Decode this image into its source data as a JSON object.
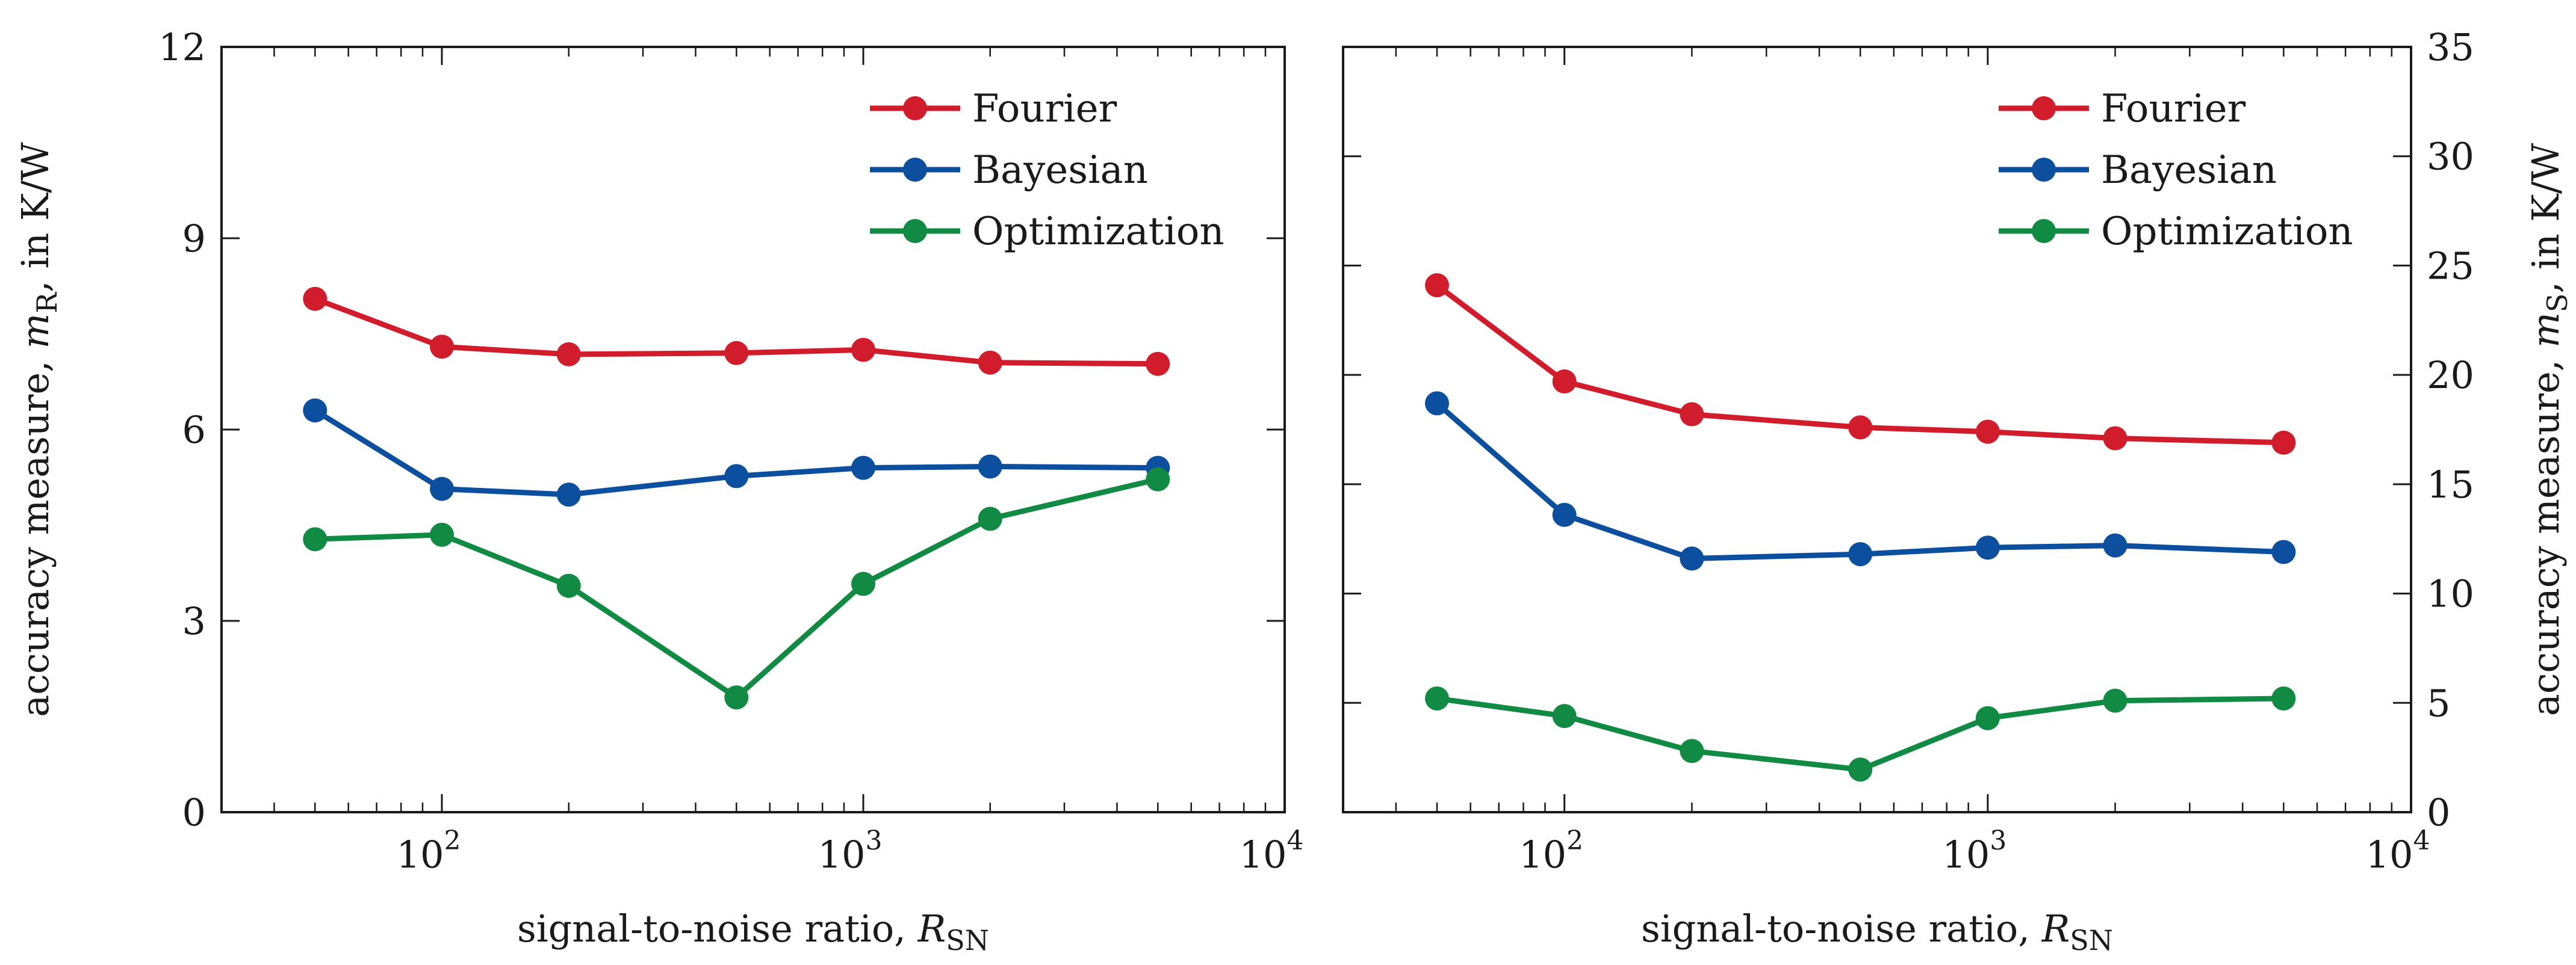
{
  "colors": {
    "fourier": "#d01c2b",
    "bayesian": "#0b4f9e",
    "optimization": "#118a43"
  },
  "chart_data": [
    {
      "type": "line",
      "xscale": "log",
      "x": [
        50,
        100,
        200,
        500,
        1000,
        2000,
        5000
      ],
      "xlim": [
        30,
        10000
      ],
      "xticks": [
        100,
        1000,
        10000
      ],
      "xtick_labels": [
        {
          "base": "10",
          "exp": "2"
        },
        {
          "base": "10",
          "exp": "3"
        },
        {
          "base": "10",
          "exp": "4"
        }
      ],
      "ylim": [
        0,
        12
      ],
      "yticks": [
        0,
        3,
        6,
        9,
        12
      ],
      "ytick_labels": [
        "0",
        "3",
        "6",
        "9",
        "12"
      ],
      "ytick_side": "left",
      "xlabel": {
        "text": "signal-to-noise ratio, ",
        "var": "R",
        "sub": "SN"
      },
      "ylabel": {
        "text": "accuracy measure, ",
        "var": "m",
        "sub": "R",
        "suffix": ", in K/W"
      },
      "legend": {
        "placement": "top-right"
      },
      "series": [
        {
          "name": "Fourier",
          "color_key": "fourier",
          "values": [
            8.05,
            7.3,
            7.18,
            7.2,
            7.25,
            7.05,
            7.03
          ]
        },
        {
          "name": "Bayesian",
          "color_key": "bayesian",
          "values": [
            6.3,
            5.07,
            4.98,
            5.27,
            5.4,
            5.42,
            5.4
          ]
        },
        {
          "name": "Optimization",
          "color_key": "optimization",
          "values": [
            4.28,
            4.35,
            3.55,
            1.8,
            3.58,
            4.6,
            5.22
          ]
        }
      ]
    },
    {
      "type": "line",
      "xscale": "log",
      "x": [
        50,
        100,
        200,
        500,
        1000,
        2000,
        5000
      ],
      "xlim": [
        30,
        10000
      ],
      "xticks": [
        100,
        1000,
        10000
      ],
      "xtick_labels": [
        {
          "base": "10",
          "exp": "2"
        },
        {
          "base": "10",
          "exp": "3"
        },
        {
          "base": "10",
          "exp": "4"
        }
      ],
      "ylim": [
        0,
        35
      ],
      "yticks": [
        0,
        5,
        10,
        15,
        20,
        25,
        30,
        35
      ],
      "ytick_labels": [
        "0",
        "5",
        "10",
        "15",
        "20",
        "25",
        "30",
        "35"
      ],
      "ytick_side": "right",
      "xlabel": {
        "text": "signal-to-noise ratio, ",
        "var": "R",
        "sub": "SN"
      },
      "ylabel": {
        "text": "accuracy measure, ",
        "var": "m",
        "sub": "S",
        "suffix": ", in K/W"
      },
      "legend": {
        "placement": "top-right"
      },
      "series": [
        {
          "name": "Fourier",
          "color_key": "fourier",
          "values": [
            24.1,
            19.7,
            18.2,
            17.6,
            17.4,
            17.1,
            16.9
          ]
        },
        {
          "name": "Bayesian",
          "color_key": "bayesian",
          "values": [
            18.7,
            13.6,
            11.6,
            11.8,
            12.1,
            12.2,
            11.9
          ]
        },
        {
          "name": "Optimization",
          "color_key": "optimization",
          "values": [
            5.2,
            4.4,
            2.8,
            1.95,
            4.3,
            5.1,
            5.2
          ]
        }
      ]
    }
  ]
}
